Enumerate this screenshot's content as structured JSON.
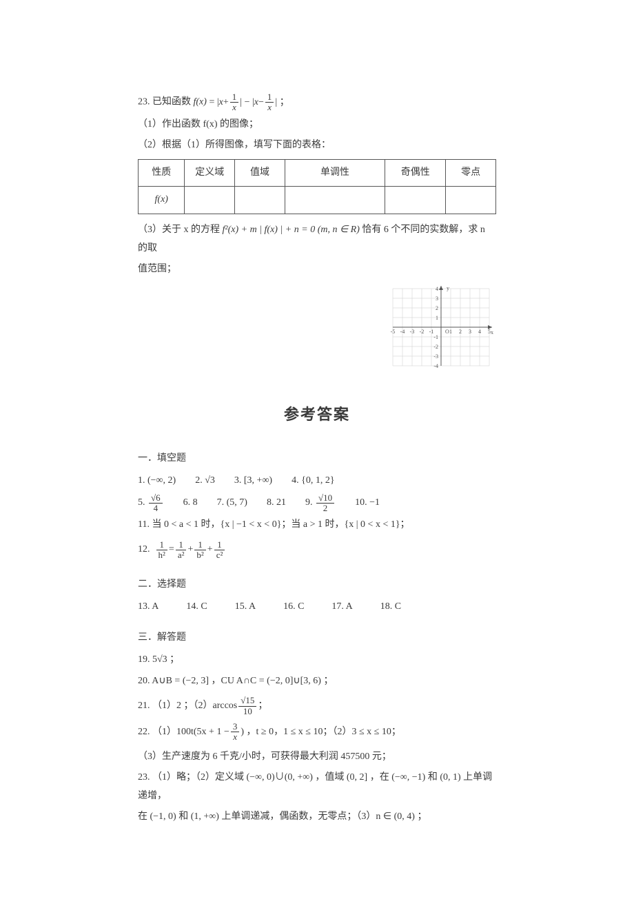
{
  "q23": {
    "num": "23.",
    "stem_prefix": "已知函数 ",
    "fn": "f(x)",
    "stem_eq_lhs": " = | ",
    "stem_x1": "x",
    "stem_plus": " + ",
    "frac1_num": "1",
    "frac1_den": "x",
    "stem_mid": " | − | ",
    "stem_x2": "x",
    "stem_minus": " − ",
    "frac2_num": "1",
    "frac2_den": "x",
    "stem_end": " | ；",
    "part1": "（1）作出函数 f(x) 的图像；",
    "part2": "（2）根据（1）所得图像，填写下面的表格：",
    "table_headers": [
      "性质",
      "定义域",
      "值域",
      "单调性",
      "奇偶性",
      "零点"
    ],
    "table_row1": "f(x)",
    "part3_a": "（3）关于 x 的方程 ",
    "part3_eq": "f²(x) + m | f(x) | + n = 0  (m, n ∈ R)",
    "part3_b": " 恰有 6 个不同的实数解，求 n 的取",
    "part3_c": "值范围；"
  },
  "grid": {
    "xmin": -5,
    "xmax": 5,
    "ymin": -4,
    "ymax": 4,
    "cell": 14,
    "axis_color": "#555555",
    "grid_color": "#cccccc",
    "label_color": "#555555",
    "y_label": "y",
    "x_label": "x",
    "origin_label": "O",
    "xticks": [
      "-5",
      "-4",
      "-3",
      "-2",
      "-1",
      "",
      "1",
      "2",
      "3",
      "4",
      "5"
    ],
    "yticks": [
      "-4",
      "-3",
      "-2",
      "-1",
      "",
      "1",
      "2",
      "3",
      "4"
    ],
    "font_size": 8
  },
  "answers_title": "参考答案",
  "sec1": {
    "head": "一．填空题",
    "row1": [
      {
        "n": "1.",
        "v": "(−∞, 2)"
      },
      {
        "n": "2.",
        "v": "√3"
      },
      {
        "n": "3.",
        "v": "[3, +∞)"
      },
      {
        "n": "4.",
        "v": "{0, 1, 2}"
      }
    ],
    "row2": {
      "a5_n": "5.",
      "a5_num": "√6",
      "a5_den": "4",
      "a6_n": "6.",
      "a6_v": "8",
      "a7_n": "7.",
      "a7_v": "(5, 7)",
      "a8_n": "8.",
      "a8_v": "21",
      "a9_n": "9.",
      "a9_num": "√10",
      "a9_den": "2",
      "a10_n": "10.",
      "a10_v": "−1"
    },
    "row3": "11.  当 0 < a < 1 时，{x | −1 < x < 0}；当 a > 1 时，{x | 0 < x < 1}；",
    "row4_n": "12.",
    "row4_lhs_num": "1",
    "row4_lhs_den": "h²",
    "row4_eq": " = ",
    "row4_a_num": "1",
    "row4_a_den": "a²",
    "row4_plus1": " + ",
    "row4_b_num": "1",
    "row4_b_den": "b²",
    "row4_plus2": " + ",
    "row4_c_num": "1",
    "row4_c_den": "c²"
  },
  "sec2": {
    "head": "二．选择题",
    "items": [
      {
        "n": "13.",
        "v": "A"
      },
      {
        "n": "14.",
        "v": "C"
      },
      {
        "n": "15.",
        "v": "A"
      },
      {
        "n": "16.",
        "v": "C"
      },
      {
        "n": "17.",
        "v": "A"
      },
      {
        "n": "18.",
        "v": "C"
      }
    ]
  },
  "sec3": {
    "head": "三．解答题",
    "a19": "19.  5√3 ；",
    "a20": "20.  A∪B = (−2, 3] ，CU A∩C = (−2, 0]∪[3, 6) ；",
    "a21_pre": "21. （1）2 ；（2）arccos ",
    "a21_num": "√15",
    "a21_den": "10",
    "a21_post": " ；",
    "a22a_pre": "22. （1）100t(5x + 1 − ",
    "a22a_num": "3",
    "a22a_den": "x",
    "a22a_post": ") ，t ≥ 0，1 ≤ x ≤ 10；（2）3 ≤ x ≤ 10；",
    "a22b": "（3）生产速度为 6 千克/小时，可获得最大利润 457500 元；",
    "a23a": "23. （1）略；（2）定义域 (−∞, 0)∪(0, +∞) ，值域 (0, 2] ，在 (−∞, −1) 和 (0, 1) 上单调递增，",
    "a23b": "在 (−1, 0) 和 (1, +∞) 上单调递减，偶函数，无零点；（3）n ∈ (0, 4) ；"
  }
}
